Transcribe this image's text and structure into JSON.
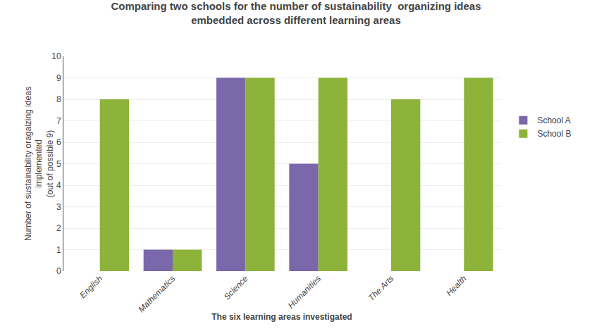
{
  "chart_data": {
    "type": "bar",
    "title": "Comparing two schools for the number of sustainability  organizing ideas\nembedded across different learning areas",
    "xlabel": "The six learning areas investigated",
    "ylabel": "Number of sustainability oragaizing ideas\nimplemented\n(out of possible 9)",
    "categories": [
      "English",
      "Mathematics",
      "Science",
      "Humanities",
      "The Arts",
      "Health"
    ],
    "series": [
      {
        "name": "School A",
        "color": "#7b68aa",
        "values": [
          0,
          1,
          9,
          5,
          0,
          0
        ]
      },
      {
        "name": "School B",
        "color": "#8db33a",
        "values": [
          8,
          1,
          9,
          9,
          8,
          9
        ]
      }
    ],
    "ylim": [
      0,
      10
    ],
    "yticks": [
      0,
      1,
      2,
      3,
      4,
      5,
      6,
      7,
      8,
      9,
      10
    ],
    "grid": true,
    "legend": "right"
  }
}
